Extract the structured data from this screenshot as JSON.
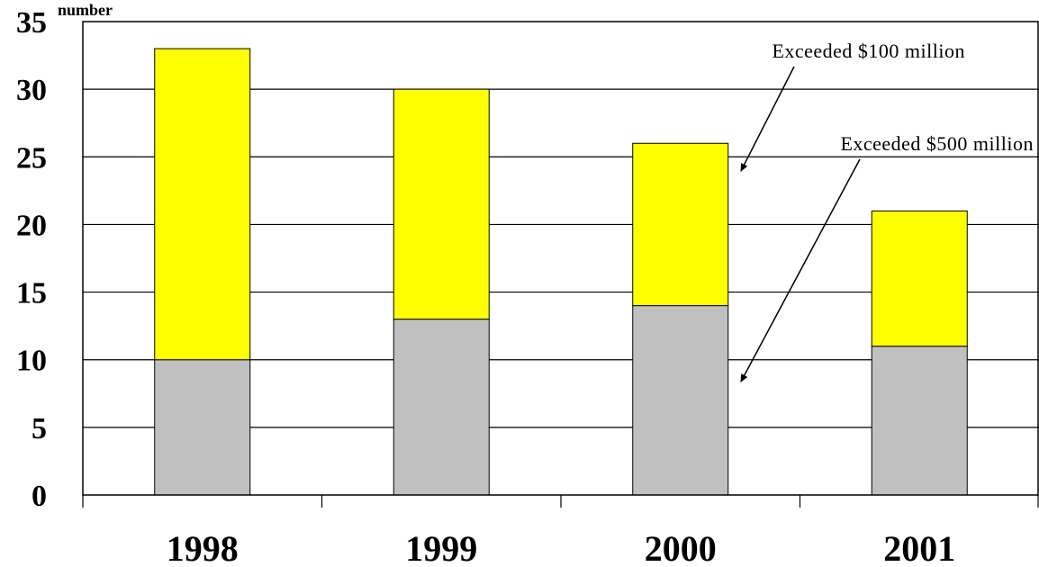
{
  "chart_data": {
    "type": "bar",
    "stacked": true,
    "title": "",
    "xlabel": "",
    "ylabel": "number",
    "categories": [
      "1998",
      "1999",
      "2000",
      "2001"
    ],
    "ylim": [
      0,
      35
    ],
    "yticks": [
      "0",
      "5",
      "10",
      "15",
      "20",
      "25",
      "30",
      "35"
    ],
    "grid": true,
    "series": [
      {
        "name": "Exceeded $500 million",
        "color": "#c0c0c0",
        "values": [
          10,
          13,
          14,
          11
        ]
      },
      {
        "name": "Exceeded $100 million",
        "color": "#ffff00",
        "values": [
          23,
          17,
          12,
          10
        ]
      }
    ],
    "annotations": [
      {
        "text": "Exceeded $100 million",
        "points_to": "2000 top segment"
      },
      {
        "text": "Exceeded $500 million",
        "points_to": "2000 bottom segment"
      }
    ]
  }
}
